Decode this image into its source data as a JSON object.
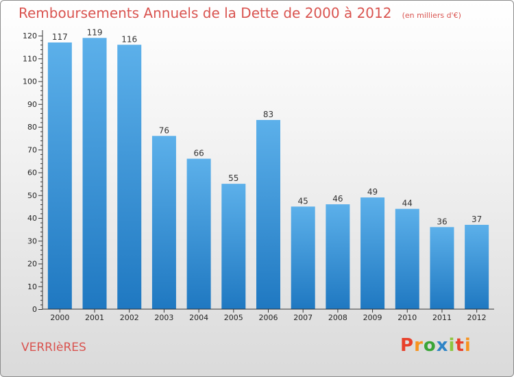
{
  "title": "Remboursements Annuels de la Dette de 2000 à 2012",
  "unit": "(en milliers d'€)",
  "commune": "VERRIèRES",
  "logo": {
    "text": "Proxiti",
    "colors": [
      "#e8402a",
      "#f7931e",
      "#3aa537",
      "#2f84c6",
      "#8cc63f",
      "#e8402a",
      "#f7931e"
    ]
  },
  "colors": {
    "title": "#d9534f",
    "bar_light": "#5cb0ea",
    "bar_dark": "#1f78c1",
    "axis": "#333333"
  },
  "chart_data": {
    "type": "bar",
    "title": "Remboursements Annuels de la Dette de 2000 à 2012",
    "categories": [
      "2000",
      "2001",
      "2002",
      "2003",
      "2004",
      "2005",
      "2006",
      "2007",
      "2008",
      "2009",
      "2010",
      "2011",
      "2012"
    ],
    "values": [
      117,
      119,
      116,
      76,
      66,
      55,
      83,
      45,
      46,
      49,
      44,
      36,
      37
    ],
    "data_labels": [
      "117",
      "119",
      "116",
      "76",
      "66",
      "55",
      "83",
      "45",
      "46",
      "49",
      "44",
      "36",
      "37"
    ],
    "ylim": [
      0,
      120
    ],
    "yticks": [
      0,
      10,
      20,
      30,
      40,
      50,
      60,
      70,
      80,
      90,
      100,
      110,
      120
    ],
    "grid": false,
    "legend": "none"
  }
}
